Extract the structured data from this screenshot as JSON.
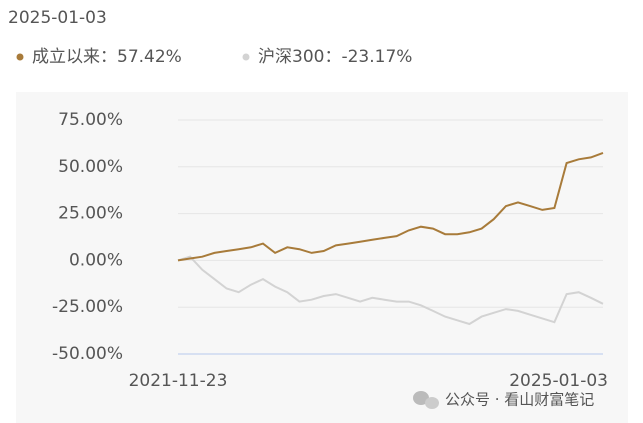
{
  "chart_data": {
    "type": "line",
    "date": "2025-01-03",
    "legend_separator": "：",
    "watermark": "公众号 · 看山财富笔记",
    "categories": [
      "2021-11-23",
      null,
      null,
      null,
      null,
      null,
      null,
      null,
      null,
      null,
      null,
      null,
      null,
      null,
      null,
      null,
      null,
      null,
      null,
      null,
      null,
      null,
      null,
      null,
      null,
      null,
      null,
      null,
      null,
      null,
      null,
      null,
      null,
      null,
      null,
      "2025-01-03"
    ],
    "series": [
      {
        "name": "成立以来",
        "color": "#a87b3a",
        "value_label": "57.42%",
        "values": [
          0,
          1,
          2,
          4,
          5,
          6,
          7,
          9,
          4,
          7,
          6,
          4,
          5,
          8,
          9,
          10,
          11,
          12,
          13,
          16,
          18,
          17,
          14,
          14,
          15,
          17,
          22,
          29,
          31,
          29,
          27,
          28,
          52,
          54,
          55,
          57.42
        ]
      },
      {
        "name": "沪深300",
        "color": "#d3d3d3",
        "value_label": "-23.17%",
        "values": [
          0,
          2,
          -5,
          -10,
          -15,
          -17,
          -13,
          -10,
          -14,
          -17,
          -22,
          -21,
          -19,
          -18,
          -20,
          -22,
          -20,
          -21,
          -22,
          -22,
          -24,
          -27,
          -30,
          -32,
          -34,
          -30,
          -28,
          -26,
          -27,
          -29,
          -31,
          -33,
          -18,
          -17,
          -20,
          -23.17
        ]
      }
    ],
    "ylim": [
      -50,
      75
    ],
    "yticks": [
      {
        "value": -50,
        "label": "-50.00%"
      },
      {
        "value": -25,
        "label": "-25.00%"
      },
      {
        "value": 0,
        "label": "0.00%"
      },
      {
        "value": 25,
        "label": "25.00%"
      },
      {
        "value": 50,
        "label": "50.00%"
      },
      {
        "value": 75,
        "label": "75.00%"
      }
    ],
    "grid": true
  }
}
